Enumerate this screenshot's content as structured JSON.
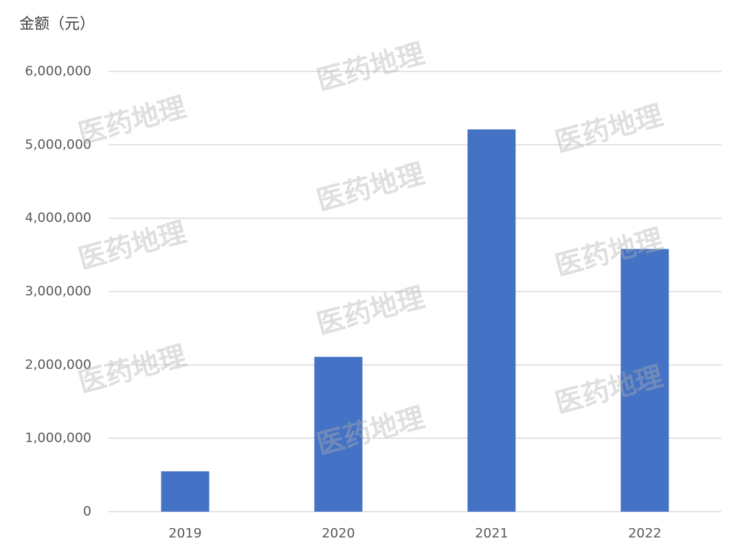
{
  "chart_data": {
    "type": "bar",
    "title": "金额（元）",
    "categories": [
      "2019",
      "2020",
      "2021",
      "2022"
    ],
    "values": [
      550000,
      2110000,
      5210000,
      3580000
    ],
    "color": "#4472c4",
    "ylim": [
      0,
      6000000
    ],
    "yticks": [
      0,
      {
        "value": 1000000,
        "label": "1,000,000"
      },
      {
        "value": 2000000,
        "label": "2,000,000"
      },
      {
        "value": 3000000,
        "label": "3,000,000"
      },
      {
        "value": 4000000,
        "label": "4,000,000"
      },
      {
        "value": 5000000,
        "label": "5,000,000"
      },
      {
        "value": 6000000,
        "label": "6,000,000"
      }
    ],
    "grid": true,
    "watermark": "医药地理"
  }
}
